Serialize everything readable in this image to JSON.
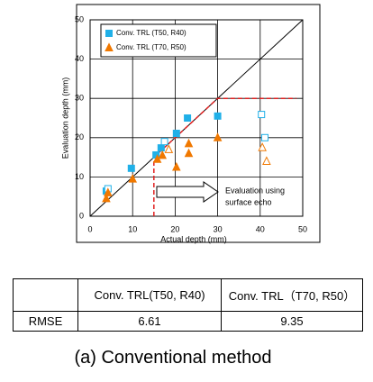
{
  "chart_data": {
    "type": "scatter",
    "xlabel": "Actual depth (mm)",
    "ylabel": "Evaluation depth (mm)",
    "xlim": [
      0,
      50
    ],
    "ylim": [
      0,
      50
    ],
    "xticks": [
      0,
      10,
      20,
      30,
      40,
      50
    ],
    "yticks": [
      0,
      10,
      20,
      30,
      40,
      50
    ],
    "grid": true,
    "legend": "upper left",
    "series": [
      {
        "name": "Conv. TRL (T50,  R40)",
        "color": "#20b0e8",
        "marker": "square",
        "x": [
          3.8,
          4.2,
          9.7,
          15.5,
          16.7,
          17.5,
          20.3,
          22.9,
          30,
          40.3,
          41.1
        ],
        "values": [
          6.4,
          7,
          12.2,
          15.6,
          17.4,
          19,
          21.1,
          25,
          25.5,
          25.9,
          20
        ],
        "filled": [
          true,
          false,
          true,
          true,
          true,
          false,
          true,
          true,
          true,
          false,
          false
        ]
      },
      {
        "name": "Conv. TRL (T70,  R50)",
        "color": "#f07800",
        "marker": "triangle",
        "x": [
          3.8,
          4.2,
          10,
          15.8,
          17,
          18.5,
          20.3,
          23.2,
          23.2,
          30,
          40.5,
          41.5
        ],
        "values": [
          4.5,
          6,
          9.5,
          14.5,
          15.5,
          17,
          12.5,
          18.5,
          16,
          20,
          17.5,
          14
        ],
        "filled": [
          true,
          true,
          true,
          true,
          true,
          false,
          true,
          true,
          true,
          true,
          false,
          false
        ]
      }
    ],
    "reference_line": {
      "color": "#e02020",
      "x": [
        15,
        15,
        30,
        48.5
      ],
      "y": [
        0,
        15,
        30,
        30
      ]
    },
    "annotation": [
      "Evaluation  using",
      "surface echo"
    ]
  },
  "table": {
    "header": [
      "Conv. TRL(T50, R40)",
      "Conv. TRL（T70, R50）"
    ],
    "rows": [
      [
        "RMSE",
        "6.61",
        "9.35"
      ]
    ]
  },
  "caption": "(a) Conventional method"
}
